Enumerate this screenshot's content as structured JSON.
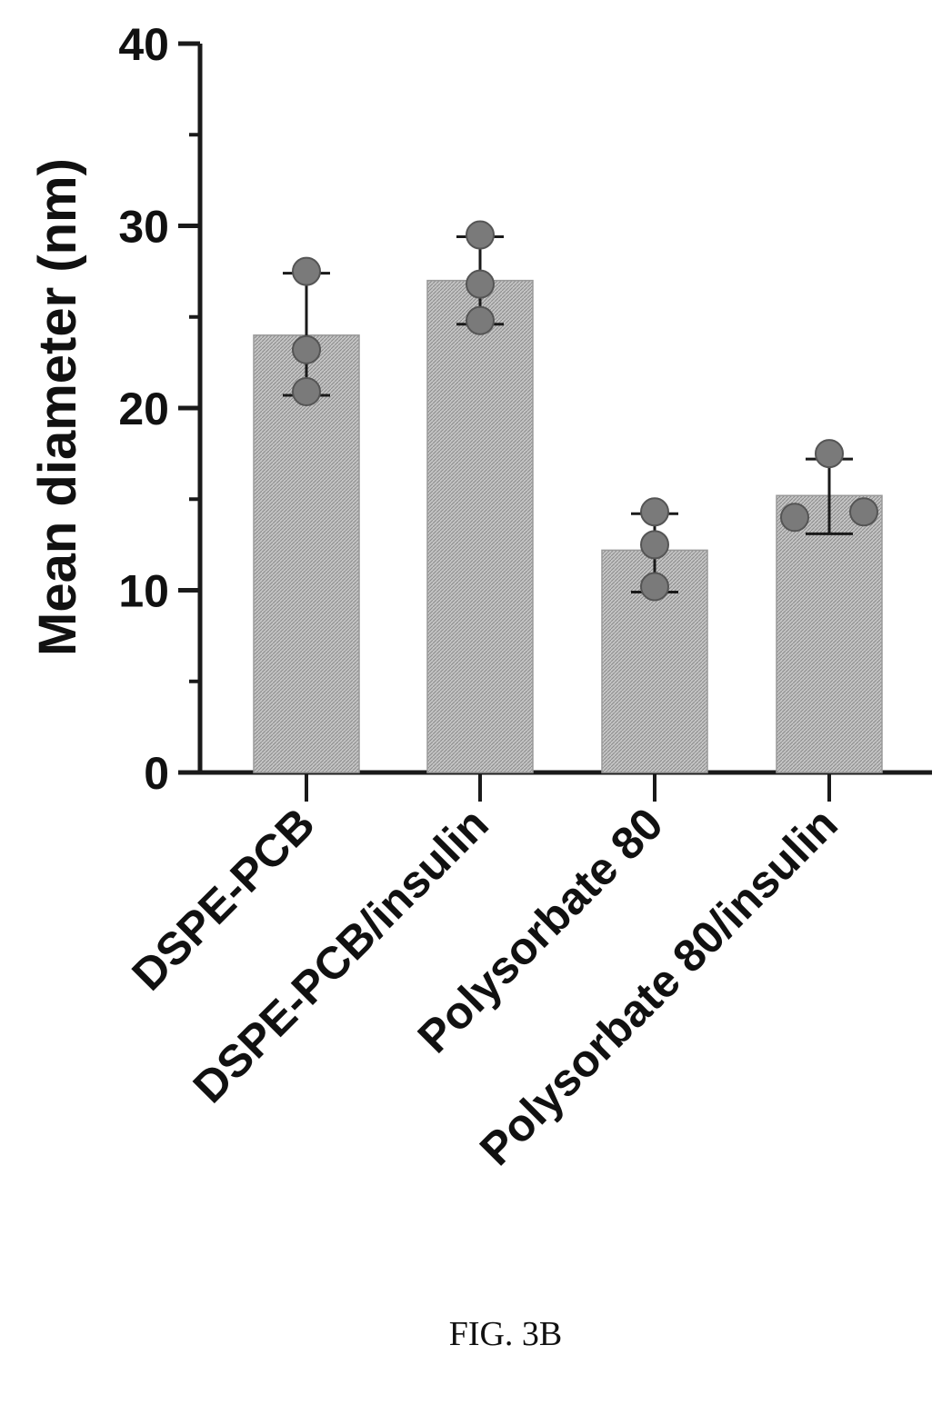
{
  "chart_data": {
    "type": "bar",
    "categories": [
      "DSPE-PCB",
      "DSPE-PCB/insulin",
      "Polysorbate 80",
      "Polysorbate 80/insulin"
    ],
    "values": [
      24,
      27,
      12.2,
      15.2
    ],
    "error_bars": [
      [
        20.7,
        27.4
      ],
      [
        24.6,
        29.4
      ],
      [
        9.9,
        14.2
      ],
      [
        13.1,
        17.2
      ]
    ],
    "points": [
      [
        27.5,
        23.2,
        20.9
      ],
      [
        29.5,
        26.8,
        24.8
      ],
      [
        14.3,
        12.5,
        10.2
      ],
      [
        17.5,
        14.0,
        14.3
      ]
    ],
    "ylabel": "Mean diameter (nm)",
    "xlabel": "",
    "ylim": [
      0,
      40
    ],
    "yticks": [
      0,
      10,
      20,
      30,
      40
    ],
    "yminor": [
      5,
      15,
      25,
      35
    ],
    "bar_color": "#b8b8b8",
    "point_color": "#7a7a7a",
    "axis_color": "#1a1a1a"
  },
  "caption": "FIG. 3B"
}
